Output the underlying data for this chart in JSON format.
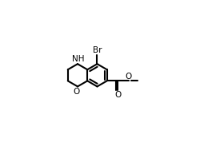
{
  "bg": "#ffffff",
  "lc": "#000000",
  "lw": 1.5,
  "fs": 7.5,
  "r": 0.4,
  "xlim": [
    0.5,
    7.5
  ],
  "ylim": [
    0.3,
    5.0
  ]
}
